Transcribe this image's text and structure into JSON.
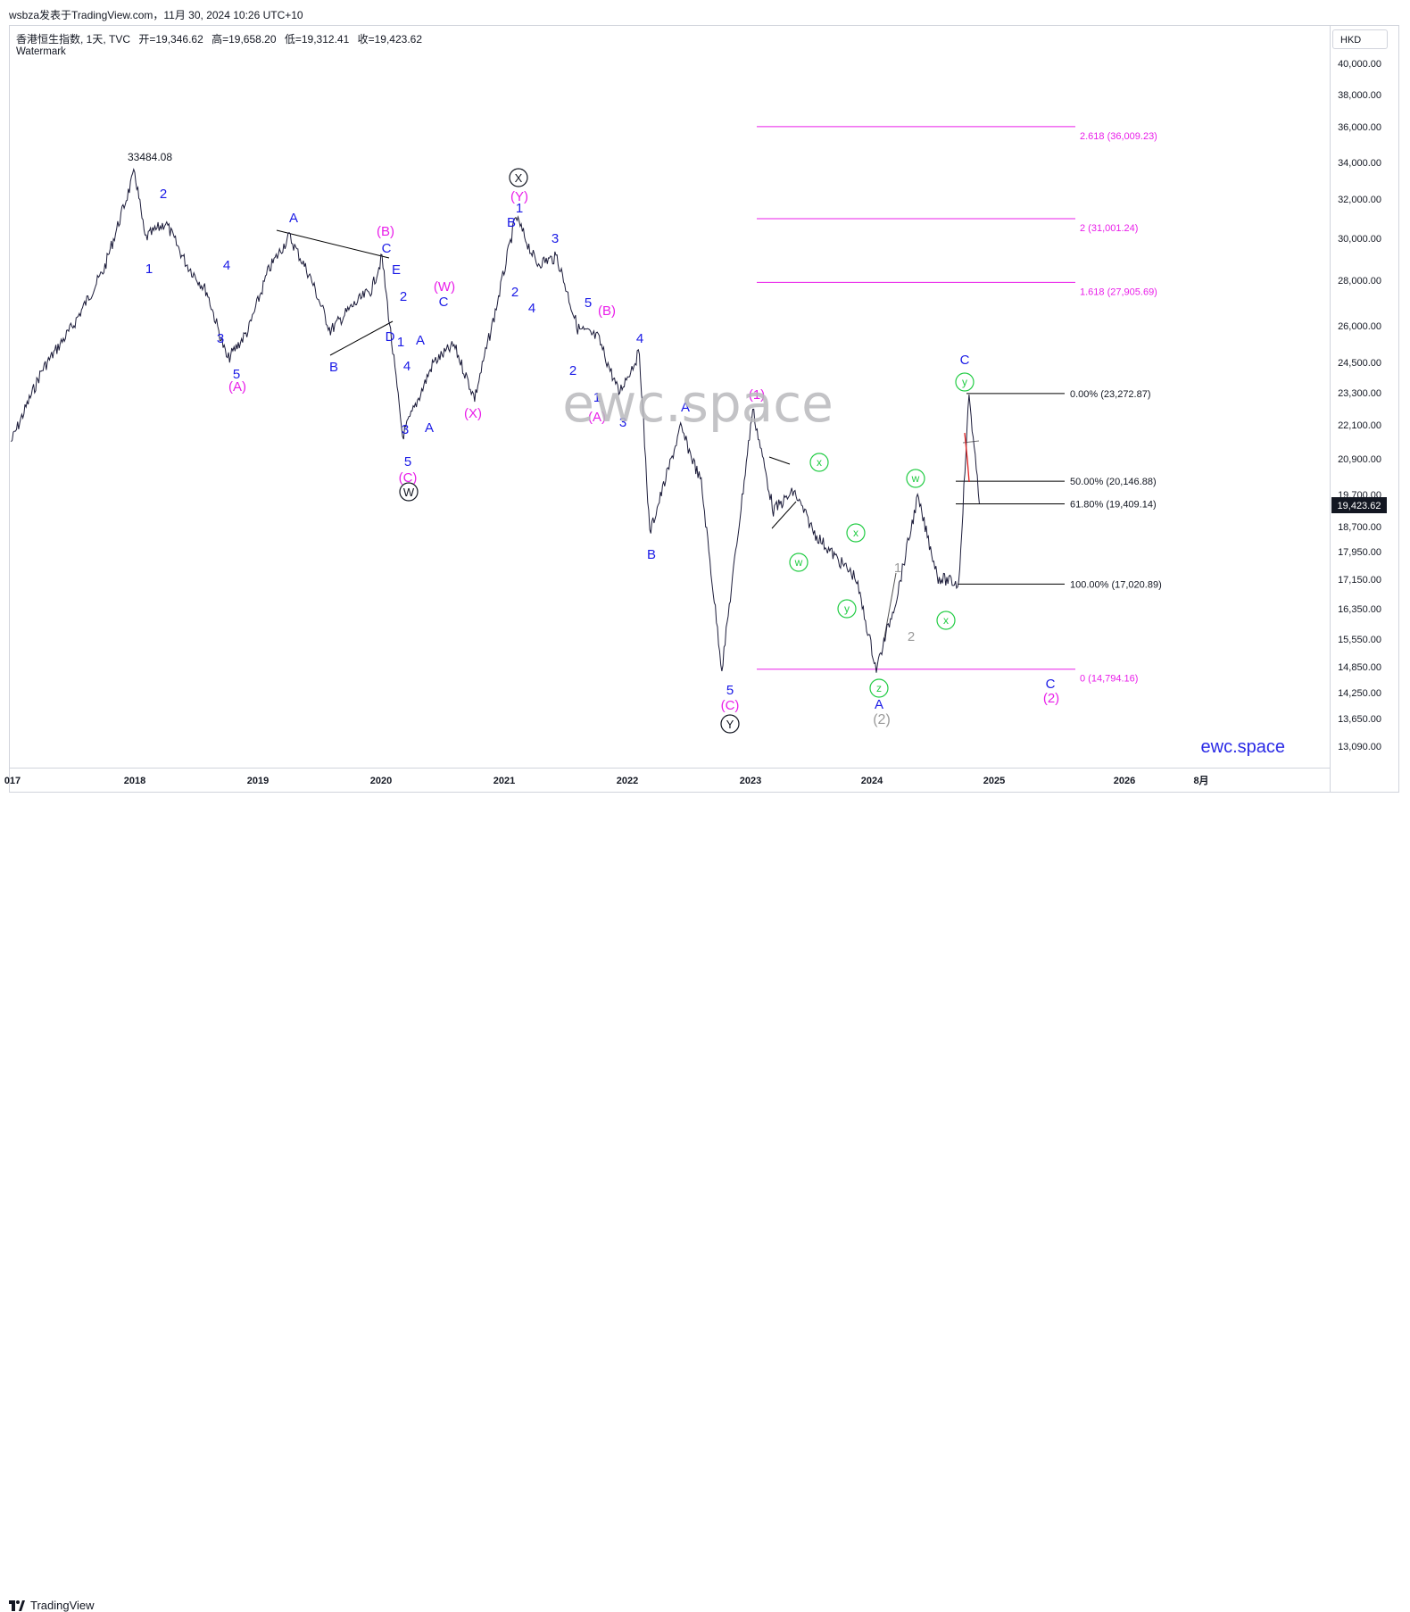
{
  "header": {
    "caption": "wsbza发表于TradingView.com，11月 30, 2024 10:26 UTC+10"
  },
  "legend": {
    "symbol": "香港恒生指数, 1天, TVC",
    "open": "开=19,346.62",
    "high": "高=19,658.20",
    "low": "低=19,312.41",
    "close": "收=19,423.62",
    "watermark_label": "Watermark"
  },
  "price_scale": {
    "currency": "HKD",
    "ticks": [
      {
        "label": "40,000.00",
        "value": 40000
      },
      {
        "label": "38,000.00",
        "value": 38000
      },
      {
        "label": "36,000.00",
        "value": 36000
      },
      {
        "label": "34,000.00",
        "value": 34000
      },
      {
        "label": "32,000.00",
        "value": 32000
      },
      {
        "label": "30,000.00",
        "value": 30000
      },
      {
        "label": "28,000.00",
        "value": 28000
      },
      {
        "label": "26,000.00",
        "value": 26000
      },
      {
        "label": "24,500.00",
        "value": 24500
      },
      {
        "label": "23,300.00",
        "value": 23300
      },
      {
        "label": "22,100.00",
        "value": 22100
      },
      {
        "label": "20,900.00",
        "value": 20900
      },
      {
        "label": "19,700.00",
        "value": 19700
      },
      {
        "label": "18,700.00",
        "value": 18700
      },
      {
        "label": "17,950.00",
        "value": 17950
      },
      {
        "label": "17,150.00",
        "value": 17150
      },
      {
        "label": "16,350.00",
        "value": 16350
      },
      {
        "label": "15,550.00",
        "value": 15550
      },
      {
        "label": "14,850.00",
        "value": 14850
      },
      {
        "label": "14,250.00",
        "value": 14250
      },
      {
        "label": "13,650.00",
        "value": 13650
      },
      {
        "label": "13,090.00",
        "value": 13090
      }
    ],
    "last_price_label": "19,423.62",
    "last_price_color": "#131722"
  },
  "time_axis": {
    "labels": [
      "017",
      "2018",
      "2019",
      "2020",
      "2021",
      "2022",
      "2023",
      "2024",
      "2025",
      "2026",
      "8月"
    ]
  },
  "watermarks": {
    "center": "ewc.space",
    "corner": "ewc.space"
  },
  "chart_data": {
    "type": "line",
    "title": "香港恒生指数, 1天, TVC",
    "ylabel": "HKD",
    "series": [
      {
        "name": "香港恒生指数",
        "points": [
          [
            "2017-01",
            21500
          ],
          [
            "2017-04",
            24200
          ],
          [
            "2017-07",
            26000
          ],
          [
            "2017-10",
            28500
          ],
          [
            "2018-01",
            33484.08
          ],
          [
            "2018-02",
            30000
          ],
          [
            "2018-04",
            30800
          ],
          [
            "2018-06",
            28800
          ],
          [
            "2018-08",
            27500
          ],
          [
            "2018-10",
            24600
          ],
          [
            "2018-12",
            25800
          ],
          [
            "2019-02",
            28500
          ],
          [
            "2019-04",
            30100
          ],
          [
            "2019-06",
            28200
          ],
          [
            "2019-08",
            25800
          ],
          [
            "2019-10",
            26800
          ],
          [
            "2019-12",
            27600
          ],
          [
            "2020-01",
            29100
          ],
          [
            "2020-03",
            21700
          ],
          [
            "2020-06",
            24500
          ],
          [
            "2020-08",
            25200
          ],
          [
            "2020-10",
            23100
          ],
          [
            "2020-12",
            26600
          ],
          [
            "2021-02",
            31100
          ],
          [
            "2021-04",
            28800
          ],
          [
            "2021-06",
            29100
          ],
          [
            "2021-08",
            25900
          ],
          [
            "2021-10",
            25500
          ],
          [
            "2021-12",
            23300
          ],
          [
            "2022-02",
            24900
          ],
          [
            "2022-03",
            18500
          ],
          [
            "2022-06",
            22000
          ],
          [
            "2022-08",
            20100
          ],
          [
            "2022-10",
            14800
          ],
          [
            "2023-01",
            22700
          ],
          [
            "2023-03",
            19200
          ],
          [
            "2023-05",
            19800
          ],
          [
            "2023-07",
            18500
          ],
          [
            "2023-09",
            17800
          ],
          [
            "2023-11",
            17200
          ],
          [
            "2024-01",
            14794.16
          ],
          [
            "2024-03",
            16700
          ],
          [
            "2024-05",
            19600
          ],
          [
            "2024-07",
            17200
          ],
          [
            "2024-09",
            17020.89
          ],
          [
            "2024-10",
            23272.87
          ],
          [
            "2024-11",
            19423.62
          ]
        ]
      }
    ],
    "annotations": {
      "high_label": "33484.08",
      "fib_levels": [
        {
          "label": "2.618 (36,009.23)",
          "value": 36009.23,
          "color": "#e91ee9"
        },
        {
          "label": "2 (31,001.24)",
          "value": 31001.24,
          "color": "#e91ee9"
        },
        {
          "label": "1.618 (27,905.69)",
          "value": 27905.69,
          "color": "#e91ee9"
        },
        {
          "label": "0 (14,794.16)",
          "value": 14794.16,
          "color": "#e91ee9"
        }
      ],
      "retracements": [
        {
          "label": "0.00% (23,272.87)",
          "value": 23272.87
        },
        {
          "label": "50.00% (20,146.88)",
          "value": 20146.88
        },
        {
          "label": "61.80% (19,409.14)",
          "value": 19409.14
        },
        {
          "label": "100.00% (17,020.89)",
          "value": 17020.89
        }
      ],
      "wave_labels_blue": [
        "2",
        "1",
        "4",
        "3",
        "5",
        "A",
        "B",
        "C",
        "E",
        "D",
        "2",
        "1",
        "4",
        "3",
        "5",
        "A",
        "C",
        "A",
        "B",
        "1",
        "2",
        "4",
        "3",
        "5",
        "2",
        "1",
        "4",
        "3",
        "A",
        "B",
        "C"
      ],
      "wave_labels_magenta": [
        "(A)",
        "(B)",
        "(C)",
        "(W)",
        "(X)",
        "(Y)",
        "(B)",
        "(A)",
        "(1)",
        "(C)",
        "(2)"
      ],
      "wave_labels_circled_black": [
        "W",
        "X",
        "Y"
      ],
      "wave_labels_circled_green": [
        "x",
        "w",
        "x",
        "y",
        "z",
        "w",
        "x",
        "y"
      ],
      "wave_labels_gray": [
        "1",
        "2",
        "(2)"
      ]
    }
  }
}
